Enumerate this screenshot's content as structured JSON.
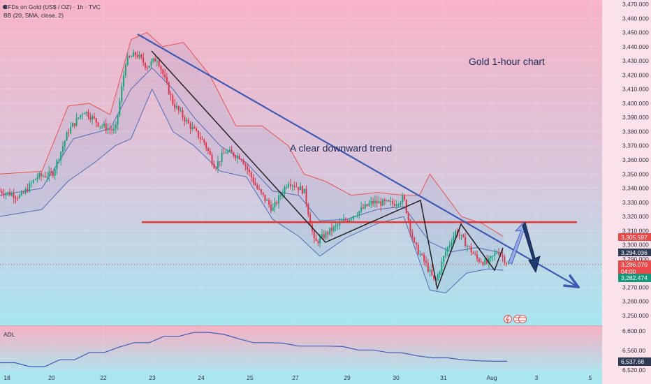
{
  "header": {
    "symbol": "CFDs on Gold (US$ / OZ) · 1h · TVC",
    "indicator": "BB (20, SMA, close, 2)"
  },
  "annotations": {
    "title": "Gold 1-hour chart",
    "trend_note": "A clear downward trend"
  },
  "price_badges": {
    "upper": "3,305.597",
    "middle": "3,294.036",
    "last_price": "3,286.070",
    "countdown": "04:00",
    "lower": "3,282.474"
  },
  "adl_panel": {
    "label": "ADL",
    "ticks": [
      "6,600.00",
      "6,560.00",
      "6,520.00"
    ],
    "current": "6,537.68"
  },
  "chart_data": {
    "type": "line",
    "title": "Gold 1-hour chart",
    "x_ticks": [
      "18",
      "20",
      "22",
      "23",
      "24",
      "25",
      "27",
      "29",
      "30",
      "31",
      "Aug",
      "3",
      "5"
    ],
    "y_ticks": [
      3470,
      3460,
      3450,
      3440,
      3430,
      3420,
      3410,
      3400,
      3390,
      3380,
      3370,
      3360,
      3350,
      3340,
      3330,
      3320,
      3310,
      3300,
      3290,
      3280,
      3270,
      3260,
      3250
    ],
    "ylim": [
      3244,
      3474
    ],
    "price_path": [
      {
        "t": 0,
        "v": 3338
      },
      {
        "t": 4,
        "v": 3334
      },
      {
        "t": 7,
        "v": 3348
      },
      {
        "t": 10,
        "v": 3350
      },
      {
        "t": 13,
        "v": 3380
      },
      {
        "t": 16,
        "v": 3395
      },
      {
        "t": 19,
        "v": 3385
      },
      {
        "t": 22,
        "v": 3380
      },
      {
        "t": 24,
        "v": 3430
      },
      {
        "t": 26,
        "v": 3435
      },
      {
        "t": 28,
        "v": 3426
      },
      {
        "t": 30,
        "v": 3432
      },
      {
        "t": 33,
        "v": 3400
      },
      {
        "t": 36,
        "v": 3385
      },
      {
        "t": 39,
        "v": 3372
      },
      {
        "t": 41,
        "v": 3355
      },
      {
        "t": 43,
        "v": 3366
      },
      {
        "t": 46,
        "v": 3362
      },
      {
        "t": 49,
        "v": 3340
      },
      {
        "t": 52,
        "v": 3325
      },
      {
        "t": 55,
        "v": 3345
      },
      {
        "t": 58,
        "v": 3338
      },
      {
        "t": 60,
        "v": 3301
      },
      {
        "t": 63,
        "v": 3310
      },
      {
        "t": 67,
        "v": 3320
      },
      {
        "t": 71,
        "v": 3330
      },
      {
        "t": 75,
        "v": 3329
      },
      {
        "t": 77,
        "v": 3333
      },
      {
        "t": 79,
        "v": 3300
      },
      {
        "t": 81,
        "v": 3288
      },
      {
        "t": 83,
        "v": 3273
      },
      {
        "t": 85,
        "v": 3295
      },
      {
        "t": 87,
        "v": 3310
      },
      {
        "t": 89,
        "v": 3300
      },
      {
        "t": 91,
        "v": 3290
      },
      {
        "t": 93,
        "v": 3287
      },
      {
        "t": 95,
        "v": 3296
      },
      {
        "t": 97,
        "v": 3286
      }
    ],
    "bollinger": {
      "upper": [
        {
          "t": 0,
          "v": 3350
        },
        {
          "t": 8,
          "v": 3352
        },
        {
          "t": 13,
          "v": 3398
        },
        {
          "t": 17,
          "v": 3400
        },
        {
          "t": 21,
          "v": 3392
        },
        {
          "t": 25,
          "v": 3445
        },
        {
          "t": 28,
          "v": 3450
        },
        {
          "t": 31,
          "v": 3440
        },
        {
          "t": 35,
          "v": 3443
        },
        {
          "t": 40,
          "v": 3420
        },
        {
          "t": 45,
          "v": 3384
        },
        {
          "t": 50,
          "v": 3384
        },
        {
          "t": 55,
          "v": 3370
        },
        {
          "t": 58,
          "v": 3350
        },
        {
          "t": 62,
          "v": 3345
        },
        {
          "t": 67,
          "v": 3335
        },
        {
          "t": 72,
          "v": 3337
        },
        {
          "t": 77,
          "v": 3335
        },
        {
          "t": 80,
          "v": 3335
        },
        {
          "t": 82,
          "v": 3350
        },
        {
          "t": 85,
          "v": 3335
        },
        {
          "t": 88,
          "v": 3320
        },
        {
          "t": 92,
          "v": 3315
        },
        {
          "t": 96,
          "v": 3306
        }
      ],
      "middle": [
        {
          "t": 0,
          "v": 3335
        },
        {
          "t": 8,
          "v": 3340
        },
        {
          "t": 14,
          "v": 3375
        },
        {
          "t": 21,
          "v": 3382
        },
        {
          "t": 25,
          "v": 3410
        },
        {
          "t": 29,
          "v": 3425
        },
        {
          "t": 33,
          "v": 3410
        },
        {
          "t": 37,
          "v": 3390
        },
        {
          "t": 42,
          "v": 3370
        },
        {
          "t": 47,
          "v": 3358
        },
        {
          "t": 52,
          "v": 3338
        },
        {
          "t": 57,
          "v": 3335
        },
        {
          "t": 61,
          "v": 3317
        },
        {
          "t": 66,
          "v": 3318
        },
        {
          "t": 72,
          "v": 3325
        },
        {
          "t": 77,
          "v": 3327
        },
        {
          "t": 82,
          "v": 3302
        },
        {
          "t": 86,
          "v": 3295
        },
        {
          "t": 91,
          "v": 3298
        },
        {
          "t": 96,
          "v": 3294
        }
      ],
      "lower": [
        {
          "t": 0,
          "v": 3320
        },
        {
          "t": 8,
          "v": 3325
        },
        {
          "t": 13,
          "v": 3345
        },
        {
          "t": 18,
          "v": 3358
        },
        {
          "t": 22,
          "v": 3370
        },
        {
          "t": 25,
          "v": 3375
        },
        {
          "t": 29,
          "v": 3410
        },
        {
          "t": 33,
          "v": 3380
        },
        {
          "t": 37,
          "v": 3370
        },
        {
          "t": 42,
          "v": 3352
        },
        {
          "t": 47,
          "v": 3348
        },
        {
          "t": 52,
          "v": 3318
        },
        {
          "t": 57,
          "v": 3306
        },
        {
          "t": 61,
          "v": 3292
        },
        {
          "t": 66,
          "v": 3305
        },
        {
          "t": 72,
          "v": 3315
        },
        {
          "t": 77,
          "v": 3320
        },
        {
          "t": 82,
          "v": 3268
        },
        {
          "t": 85,
          "v": 3266
        },
        {
          "t": 89,
          "v": 3280
        },
        {
          "t": 93,
          "v": 3283
        },
        {
          "t": 96,
          "v": 3282
        }
      ]
    },
    "resistance_level": 3316,
    "adl_values": [
      6535,
      6535,
      6527,
      6527,
      6541,
      6541,
      6556,
      6556,
      6567,
      6576,
      6576,
      6589,
      6589,
      6597,
      6597,
      6593,
      6584,
      6576,
      6576,
      6575,
      6569,
      6569,
      6569,
      6568,
      6561,
      6561,
      6556,
      6555,
      6549,
      6545,
      6545,
      6541,
      6539,
      6538,
      6538
    ]
  },
  "colors": {
    "bg_top": "#f6b2c6",
    "bg_bottom": "#a8e4ee",
    "trendline": "#3f5ab4",
    "zigzag": "#222222",
    "resistance": "#e53935",
    "band_upper": "#e8524f",
    "band_middle": "#4f6db8",
    "badge_red": "#e84a4a",
    "badge_navy": "#2f3b52",
    "badge_teal": "#16977a"
  }
}
